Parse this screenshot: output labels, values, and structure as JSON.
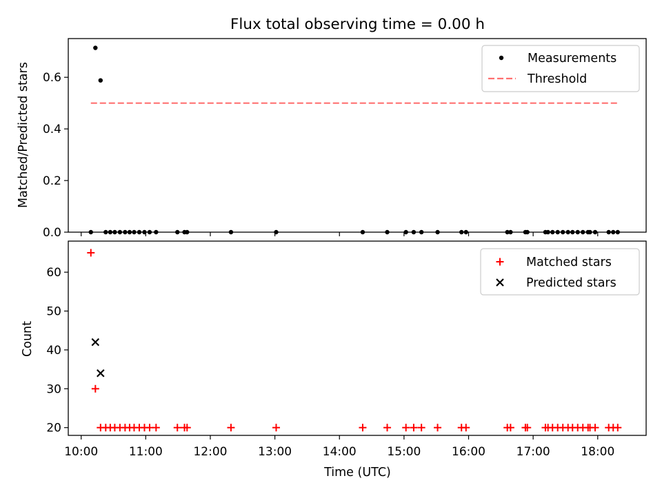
{
  "chart_data": [
    {
      "type": "scatter",
      "title": "Flux total observing time = 0.00 h",
      "xlabel": "",
      "ylabel": "Matched/Predicted stars",
      "xlim": [
        9.8,
        18.75
      ],
      "ylim": [
        0,
        0.75
      ],
      "yticks": [
        0.0,
        0.2,
        0.4,
        0.6
      ],
      "ytick_labels": [
        "0.0",
        "0.2",
        "0.4",
        "0.6"
      ],
      "grid": false,
      "legend_position": "upper right",
      "series": [
        {
          "name": "Measurements",
          "marker": "dot",
          "color": "#000000",
          "x": [
            10.15,
            10.22,
            10.3,
            10.38,
            10.45,
            10.52,
            10.6,
            10.68,
            10.75,
            10.82,
            10.9,
            10.98,
            11.06,
            11.16,
            11.49,
            11.6,
            11.64,
            12.32,
            13.02,
            14.36,
            14.74,
            15.03,
            15.15,
            15.27,
            15.52,
            15.89,
            15.96,
            16.6,
            16.65,
            16.88,
            16.91,
            17.19,
            17.23,
            17.3,
            17.38,
            17.46,
            17.54,
            17.61,
            17.69,
            17.77,
            17.85,
            17.88,
            17.96,
            18.17,
            18.24,
            18.31
          ],
          "y": [
            0,
            0.714,
            0.588,
            0,
            0,
            0,
            0,
            0,
            0,
            0,
            0,
            0,
            0,
            0,
            0,
            0,
            0,
            0,
            0,
            0,
            0,
            0,
            0,
            0,
            0,
            0,
            0,
            0,
            0,
            0,
            0,
            0,
            0,
            0,
            0,
            0,
            0,
            0,
            0,
            0,
            0,
            0,
            0,
            0,
            0,
            0
          ]
        },
        {
          "name": "Threshold",
          "style": "dashed",
          "color": "#ff7070",
          "x": [
            10.15,
            18.31
          ],
          "y": [
            0.5,
            0.5
          ]
        }
      ]
    },
    {
      "type": "scatter",
      "title": "",
      "xlabel": "Time (UTC)",
      "ylabel": "Count",
      "xlim": [
        9.8,
        18.75
      ],
      "ylim": [
        18,
        68
      ],
      "xticks": [
        10,
        11,
        12,
        13,
        14,
        15,
        16,
        17,
        18
      ],
      "xtick_labels": [
        "10:00",
        "11:00",
        "12:00",
        "13:00",
        "14:00",
        "15:00",
        "16:00",
        "17:00",
        "18:00"
      ],
      "yticks": [
        20,
        30,
        40,
        50,
        60
      ],
      "ytick_labels": [
        "20",
        "30",
        "40",
        "50",
        "60"
      ],
      "grid": false,
      "legend_position": "upper right",
      "series": [
        {
          "name": "Matched stars",
          "marker": "plus",
          "color": "#ff0000",
          "x": [
            10.15,
            10.22,
            10.3,
            10.38,
            10.45,
            10.52,
            10.6,
            10.68,
            10.75,
            10.82,
            10.9,
            10.98,
            11.06,
            11.16,
            11.49,
            11.6,
            11.64,
            12.32,
            13.02,
            14.36,
            14.74,
            15.03,
            15.15,
            15.27,
            15.52,
            15.89,
            15.96,
            16.6,
            16.65,
            16.88,
            16.91,
            17.19,
            17.23,
            17.3,
            17.38,
            17.46,
            17.54,
            17.61,
            17.69,
            17.77,
            17.85,
            17.88,
            17.96,
            18.17,
            18.24,
            18.31
          ],
          "y": [
            65,
            30,
            20,
            20,
            20,
            20,
            20,
            20,
            20,
            20,
            20,
            20,
            20,
            20,
            20,
            20,
            20,
            20,
            20,
            20,
            20,
            20,
            20,
            20,
            20,
            20,
            20,
            20,
            20,
            20,
            20,
            20,
            20,
            20,
            20,
            20,
            20,
            20,
            20,
            20,
            20,
            20,
            20,
            20,
            20,
            20
          ]
        },
        {
          "name": "Predicted stars",
          "marker": "x",
          "color": "#000000",
          "x": [
            10.22,
            10.3
          ],
          "y": [
            42,
            34
          ]
        }
      ]
    }
  ]
}
